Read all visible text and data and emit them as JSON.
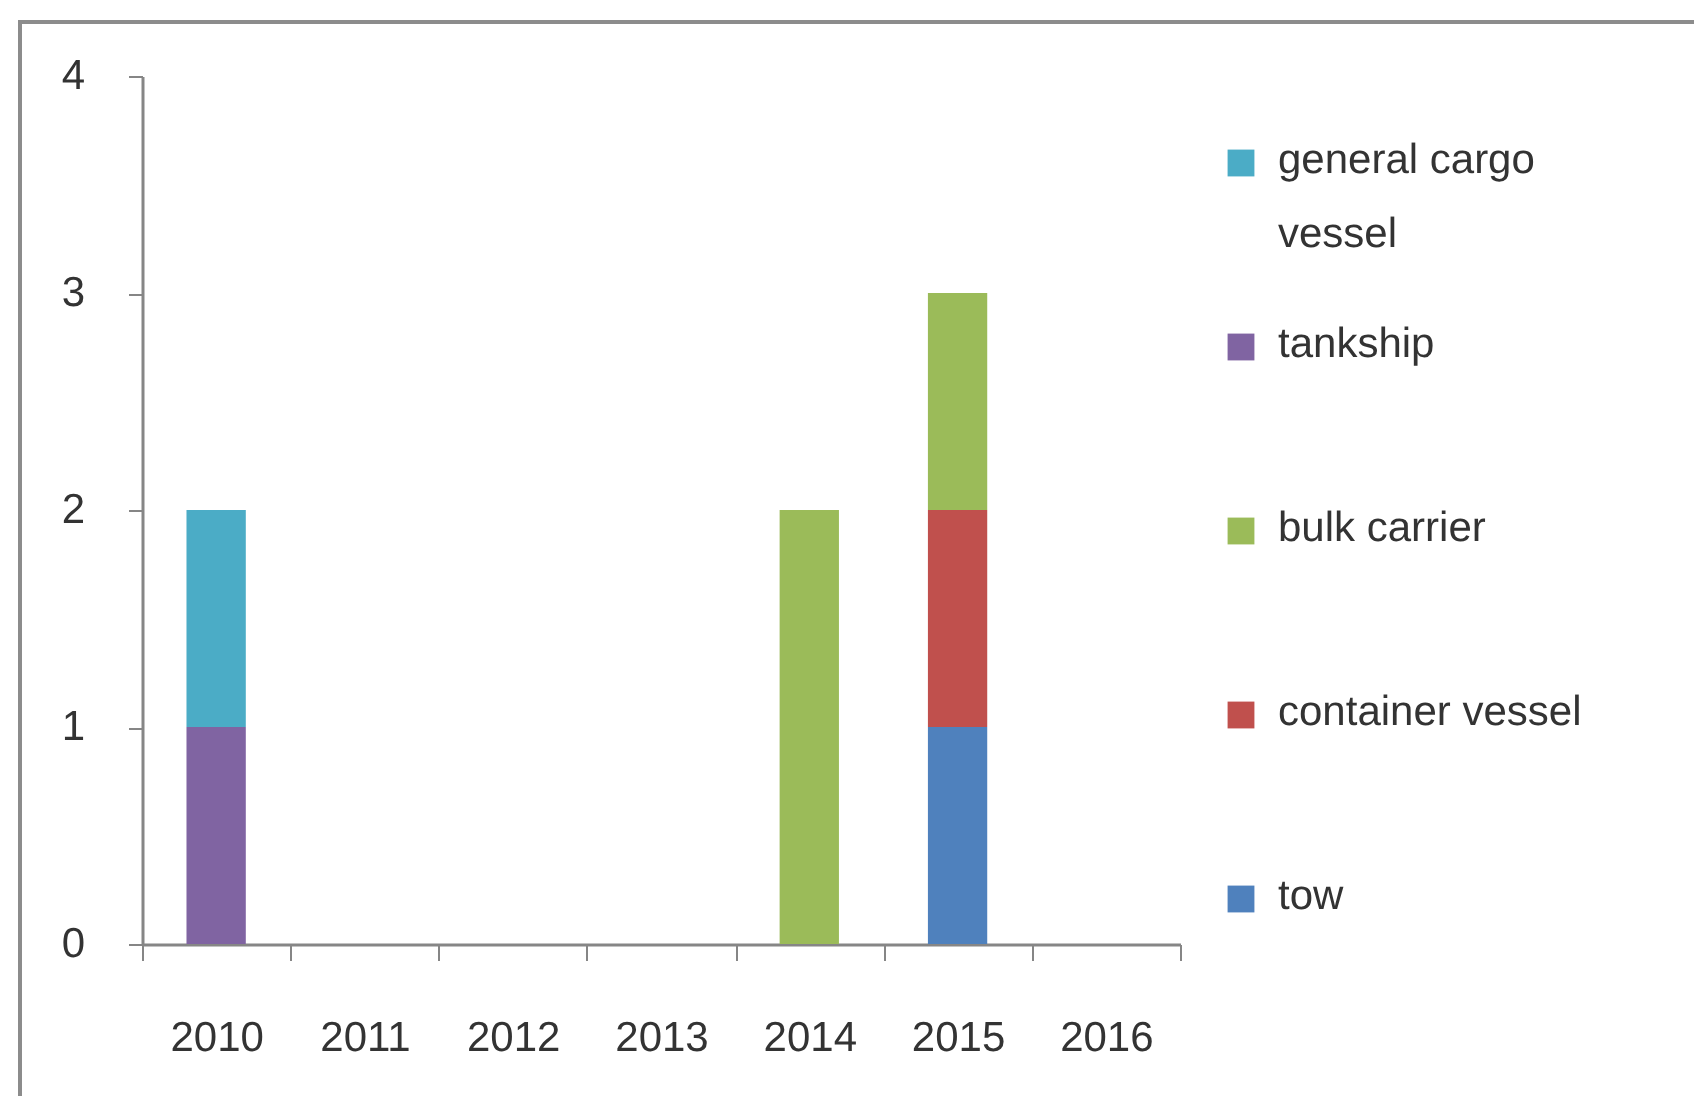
{
  "chart_data": {
    "type": "bar",
    "stacked": true,
    "categories": [
      "2010",
      "2011",
      "2012",
      "2013",
      "2014",
      "2015",
      "2016"
    ],
    "series": [
      {
        "name": "tow",
        "color": "#4f81bd",
        "values": [
          null,
          null,
          null,
          null,
          null,
          1,
          null
        ]
      },
      {
        "name": "container vessel",
        "color": "#c0504d",
        "values": [
          null,
          null,
          null,
          null,
          null,
          1,
          null
        ]
      },
      {
        "name": "bulk carrier",
        "color": "#9bbb59",
        "values": [
          null,
          null,
          null,
          null,
          2,
          1,
          null
        ]
      },
      {
        "name": "tankship",
        "color": "#8064a2",
        "values": [
          1,
          null,
          null,
          null,
          null,
          null,
          null
        ]
      },
      {
        "name": "general cargo vessel",
        "color": "#4bacc6",
        "values": [
          1,
          null,
          null,
          null,
          null,
          null,
          null
        ]
      }
    ],
    "ylim": [
      0,
      4
    ],
    "yticks": [
      0,
      1,
      2,
      3,
      4
    ],
    "grid": false,
    "legend": "right"
  }
}
